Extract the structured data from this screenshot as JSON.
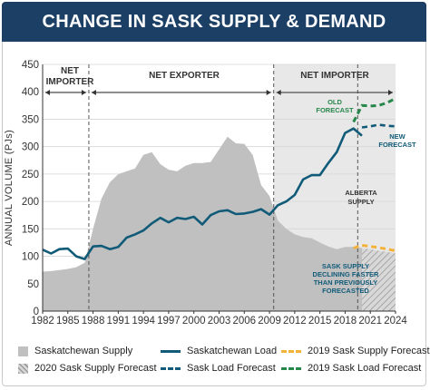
{
  "title": "CHANGE IN SASK SUPPLY & DEMAND",
  "chart_data": {
    "type": "area",
    "ylabel": "ANNUAL VOLUME (PJs)",
    "ylim": [
      0,
      450
    ],
    "yticks": [
      0,
      50,
      100,
      150,
      200,
      250,
      300,
      350,
      400,
      450
    ],
    "xlim": [
      1982,
      2024
    ],
    "xticks": [
      1982,
      1985,
      1988,
      1991,
      1994,
      1997,
      2000,
      2003,
      2006,
      2009,
      2012,
      2015,
      2018,
      2021,
      2024
    ],
    "phases": [
      {
        "label_lines": [
          "NET",
          "IMPORTER"
        ],
        "from": 1982,
        "to": 1987.5
      },
      {
        "label_lines": [
          "NET EXPORTER"
        ],
        "from": 1987.5,
        "to": 2009.5
      },
      {
        "label_lines": [
          "NET IMPORTER"
        ],
        "from": 2009.5,
        "to": 2024
      }
    ],
    "dividers": [
      1987.5,
      2009.5,
      2019.5
    ],
    "annotations": {
      "old_forecast": [
        "OLD",
        "FORECAST"
      ],
      "new_forecast": [
        "NEW",
        "FORECAST"
      ],
      "alberta_supply": [
        "ALBERTA",
        "SUPPLY"
      ],
      "declining": [
        "SASK SUPPLY",
        "DECLINING FASTER",
        "THAN PREVIOUSLY",
        "FORECASTED"
      ]
    },
    "series": [
      {
        "name": "Saskatchewan Supply",
        "style": "area",
        "x": [
          1982,
          1983,
          1984,
          1985,
          1986,
          1987,
          1988,
          1989,
          1990,
          1991,
          1992,
          1993,
          1994,
          1995,
          1996,
          1997,
          1998,
          1999,
          2000,
          2001,
          2002,
          2003,
          2004,
          2005,
          2006,
          2007,
          2008,
          2009,
          2010,
          2011,
          2012,
          2013,
          2014,
          2015,
          2016,
          2017,
          2018,
          2019,
          2020
        ],
        "values": [
          72,
          73,
          75,
          77,
          80,
          88,
          150,
          205,
          235,
          250,
          255,
          260,
          285,
          290,
          268,
          258,
          255,
          265,
          270,
          270,
          272,
          295,
          318,
          306,
          305,
          285,
          230,
          210,
          165,
          150,
          140,
          135,
          133,
          125,
          118,
          113,
          117,
          117,
          115
        ]
      },
      {
        "name": "2020 Sask Supply Forecast",
        "style": "hatched-area",
        "x": [
          2020,
          2021,
          2022,
          2023,
          2024
        ],
        "values": [
          115,
          113,
          110,
          108,
          105
        ]
      },
      {
        "name": "Saskatchewan Load",
        "style": "solid-line",
        "x": [
          1982,
          1983,
          1984,
          1985,
          1986,
          1987,
          1988,
          1989,
          1990,
          1991,
          1992,
          1993,
          1994,
          1995,
          1996,
          1997,
          1998,
          1999,
          2000,
          2001,
          2002,
          2003,
          2004,
          2005,
          2006,
          2007,
          2008,
          2009,
          2010,
          2011,
          2012,
          2013,
          2014,
          2015,
          2016,
          2017,
          2018,
          2019,
          2020
        ],
        "values": [
          112,
          105,
          113,
          114,
          100,
          95,
          118,
          119,
          113,
          117,
          134,
          140,
          147,
          160,
          170,
          162,
          170,
          168,
          172,
          158,
          175,
          182,
          184,
          177,
          178,
          181,
          186,
          176,
          193,
          200,
          212,
          240,
          248,
          248,
          270,
          290,
          325,
          333,
          320
        ]
      },
      {
        "name": "Sask Load Forecast",
        "style": "dashed-line",
        "x": [
          2020,
          2021,
          2022,
          2023,
          2024
        ],
        "values": [
          335,
          337,
          340,
          338,
          337
        ]
      },
      {
        "name": "2019 Sask Supply Forecast",
        "style": "dashed-line",
        "x": [
          2019,
          2020,
          2021,
          2022,
          2023,
          2024
        ],
        "values": [
          115,
          120,
          118,
          116,
          113,
          110
        ]
      },
      {
        "name": "2019 Sask Load Forecast",
        "style": "dashed-line",
        "x": [
          2019,
          2020,
          2021,
          2022,
          2023,
          2024
        ],
        "values": [
          345,
          375,
          374,
          375,
          380,
          388
        ]
      }
    ],
    "alberta_area": {
      "from": 2009.5,
      "to": 2024,
      "value": 450
    }
  },
  "colors": {
    "title_bg": "#1c3f66",
    "supply": "#c0c0c0",
    "load": "#115b78",
    "supply_forecast_2019": "#f4b23a",
    "load_forecast_2019": "#26874a",
    "alberta": "#e8e8e8",
    "hatch": "#b8b8b8"
  },
  "legend": [
    {
      "label": "Saskatchewan Supply",
      "kind": "swatch"
    },
    {
      "label": "Saskatchewan Load",
      "kind": "line"
    },
    {
      "label": "2019 Sask Supply Forecast",
      "kind": "dash-orange"
    },
    {
      "label": "2020 Sask Supply Forecast",
      "kind": "hatch"
    },
    {
      "label": "Sask Load Forecast",
      "kind": "dash-blue"
    },
    {
      "label": "2019 Sask Load Forecast",
      "kind": "dash-green"
    }
  ]
}
